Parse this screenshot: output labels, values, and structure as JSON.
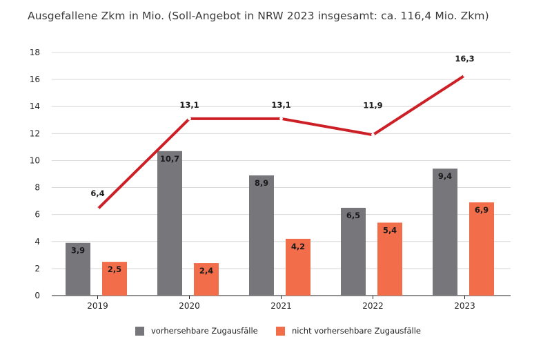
{
  "title": "Ausgefallene Zkm in Mio. (Soll-Angebot in NRW 2023 insgesamt: ca. 116,4 Mio. Zkm)",
  "colors": {
    "series1": "#77767b",
    "series2": "#f26d4a",
    "series3": "#cc1f26",
    "grid": "#d9d9d9"
  },
  "chart_data": {
    "type": "bar",
    "title": "Ausgefallene Zkm in Mio. (Soll-Angebot in NRW 2023 insgesamt: ca. 116,4 Mio. Zkm)",
    "categories": [
      "2019",
      "2020",
      "2021",
      "2022",
      "2023"
    ],
    "series": [
      {
        "name": "vorhersehbare Zugausfälle",
        "type": "bar",
        "values": [
          3.9,
          10.7,
          8.9,
          6.5,
          9.4
        ],
        "labels": [
          "3,9",
          "10,7",
          "8,9",
          "6,5",
          "9,4"
        ]
      },
      {
        "name": "nicht vorhersehbare Zugausfälle",
        "type": "bar",
        "values": [
          2.5,
          2.4,
          4.2,
          5.4,
          6.9
        ],
        "labels": [
          "2,5",
          "2,4",
          "4,2",
          "5,4",
          "6,9"
        ]
      },
      {
        "type": "line",
        "values": [
          6.4,
          13.1,
          13.1,
          11.9,
          16.3
        ],
        "labels": [
          "6,4",
          "13,1",
          "13,1",
          "11,9",
          "16,3"
        ]
      }
    ],
    "yticks": [
      0,
      2,
      4,
      6,
      8,
      10,
      12,
      14,
      16,
      18
    ],
    "ylim": [
      0,
      18
    ],
    "grid": true,
    "legend": "bottom"
  }
}
